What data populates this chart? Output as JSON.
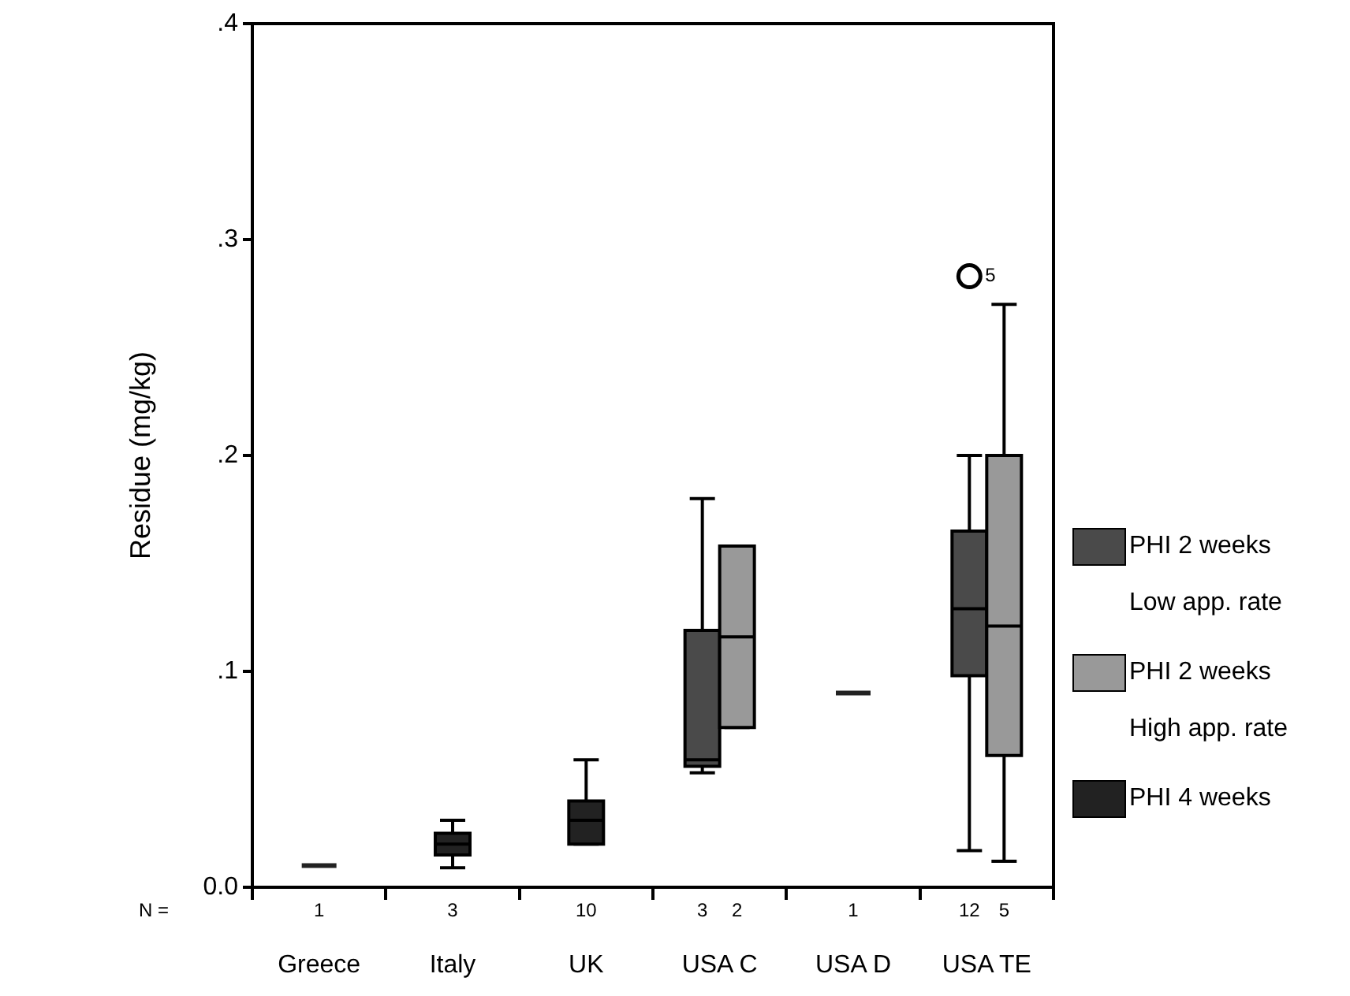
{
  "chart_data": {
    "type": "box",
    "ylabel": "Residue (mg/kg)",
    "categories": [
      "Greece",
      "Italy",
      "UK",
      "USA C",
      "USA D",
      "USA TE"
    ],
    "ylim": [
      0,
      0.4
    ],
    "yticks": [
      {
        "value": 0,
        "label": "0.0"
      },
      {
        "value": 0.1,
        "label": ".1"
      },
      {
        "value": 0.2,
        "label": ".2"
      },
      {
        "value": 0.3,
        "label": ".3"
      },
      {
        "value": 0.4,
        "label": ".4"
      }
    ],
    "legend": "right",
    "grid": false,
    "series": [
      {
        "name": "PHI 2 weeks\nLow app. rate",
        "color": "#4a4a4a",
        "boxes": [
          null,
          null,
          null,
          {
            "low": 0.053,
            "q1": 0.056,
            "median": 0.059,
            "q3": 0.119,
            "high": 0.18
          },
          null,
          {
            "low": 0.017,
            "q1": 0.098,
            "median": 0.129,
            "q3": 0.165,
            "high": 0.2,
            "outliers": [
              0.283
            ]
          }
        ]
      },
      {
        "name": "PHI 2 weeks\nHigh app. rate",
        "color": "#999999",
        "boxes": [
          null,
          null,
          null,
          {
            "low": 0.074,
            "q1": 0.074,
            "median": 0.116,
            "q3": 0.158,
            "high": 0.158
          },
          null,
          {
            "low": 0.012,
            "q1": 0.061,
            "median": 0.121,
            "q3": 0.2,
            "high": 0.27
          }
        ]
      },
      {
        "name": "PHI 4 weeks",
        "color": "#222222",
        "boxes": [
          {
            "low": 0.01,
            "q1": 0.01,
            "median": 0.01,
            "q3": 0.01,
            "high": 0.01
          },
          {
            "low": 0.009,
            "q1": 0.015,
            "median": 0.02,
            "q3": 0.025,
            "high": 0.031
          },
          {
            "low": 0.02,
            "q1": 0.02,
            "median": 0.031,
            "q3": 0.04,
            "high": 0.059
          },
          null,
          {
            "low": 0.09,
            "q1": 0.09,
            "median": 0.09,
            "q3": 0.09,
            "high": 0.09
          },
          null
        ]
      }
    ],
    "annotations": [
      "N =",
      "1",
      "3",
      "10",
      "3",
      "2",
      "1",
      "12",
      "5",
      "5"
    ]
  }
}
